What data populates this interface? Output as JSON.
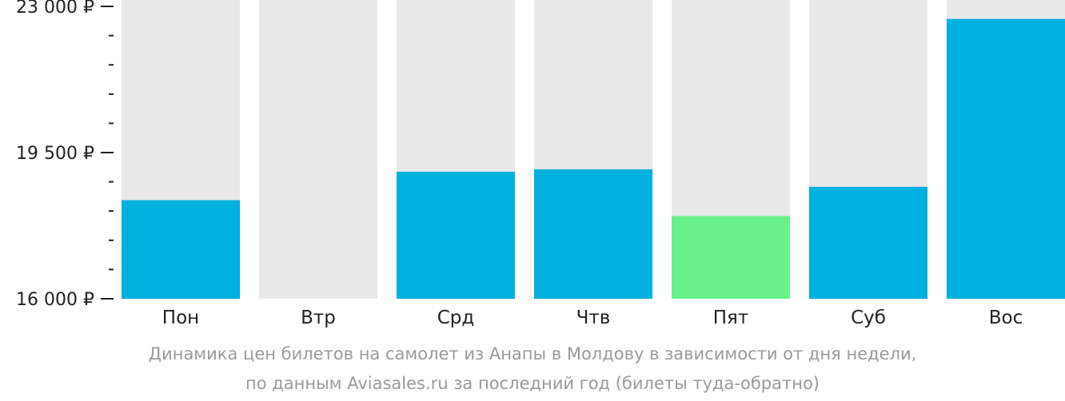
{
  "chart_data": {
    "type": "bar",
    "categories": [
      "Пон",
      "Втр",
      "Срд",
      "Чтв",
      "Пят",
      "Суб",
      "Вос"
    ],
    "values": [
      18360,
      null,
      19040,
      19100,
      17980,
      18680,
      22700
    ],
    "ylim": [
      16000,
      23000
    ],
    "y_ticks": [
      {
        "value": 23000,
        "label": "23 000 ₽"
      },
      {
        "value": 19500,
        "label": "19 500 ₽"
      },
      {
        "value": 16000,
        "label": "16 000 ₽"
      }
    ],
    "y_minor_step": 700,
    "caption_lines": [
      "Динамика цен билетов на самолет из Анапы в Молдову в зависимости от дня недели,",
      "по данным Aviasales.ru за последний год (билеты туда-обратно)"
    ],
    "colors": {
      "bar": "#00b0dd",
      "bar_lowest": "#6af08a",
      "bar_background": "#e8e8e8",
      "axis": "#222222",
      "caption": "#9a9a9a"
    },
    "highlight_index": 4
  }
}
